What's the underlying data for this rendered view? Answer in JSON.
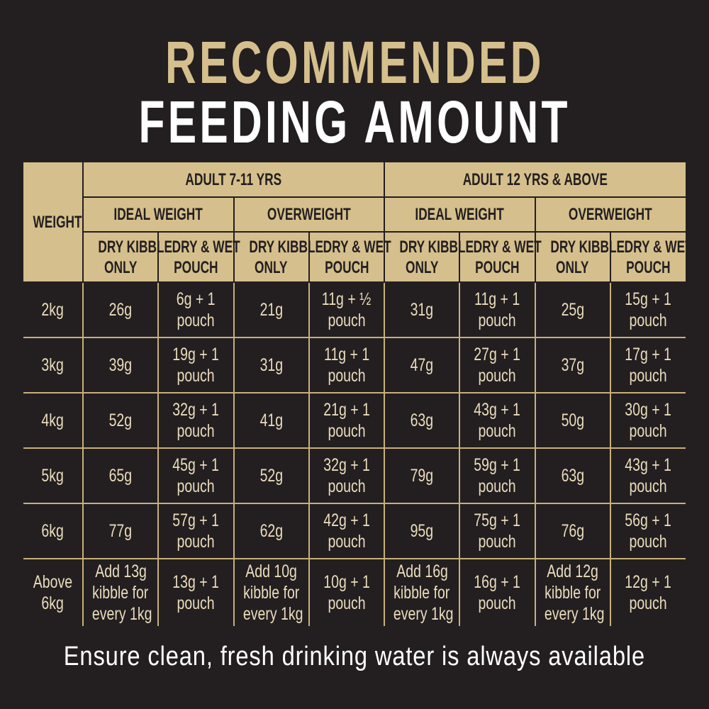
{
  "title": {
    "line1": "RECOMMENDED",
    "line2": "FEEDING AMOUNT"
  },
  "colors": {
    "background": "#231f20",
    "gold": "#d5bf8c",
    "text": "#eadcbc"
  },
  "table": {
    "weight_header": "WEIGHT",
    "age_groups": [
      "ADULT 7-11 YRS",
      "ADULT 12 YRS & ABOVE"
    ],
    "conditions": [
      "IDEAL WEIGHT",
      "OVERWEIGHT",
      "IDEAL WEIGHT",
      "OVERWEIGHT"
    ],
    "feed_types": [
      [
        "DRY KIBBLE",
        "ONLY"
      ],
      [
        "DRY & WET",
        "POUCH"
      ],
      [
        "DRY KIBBLE",
        "ONLY"
      ],
      [
        "DRY & WET",
        "POUCH"
      ],
      [
        "DRY KIBBLE",
        "ONLY"
      ],
      [
        "DRY & WET",
        "POUCH"
      ],
      [
        "DRY KIBBLE",
        "ONLY"
      ],
      [
        "DRY & WET",
        "POUCH"
      ]
    ],
    "rows": [
      {
        "weight": [
          "2kg"
        ],
        "values": [
          [
            "26g"
          ],
          [
            "6g + 1",
            "pouch"
          ],
          [
            "21g"
          ],
          [
            "11g + ½",
            "pouch"
          ],
          [
            "31g"
          ],
          [
            "11g + 1",
            "pouch"
          ],
          [
            "25g"
          ],
          [
            "15g + 1",
            "pouch"
          ]
        ]
      },
      {
        "weight": [
          "3kg"
        ],
        "values": [
          [
            "39g"
          ],
          [
            "19g + 1",
            "pouch"
          ],
          [
            "31g"
          ],
          [
            "11g + 1",
            "pouch"
          ],
          [
            "47g"
          ],
          [
            "27g + 1",
            "pouch"
          ],
          [
            "37g"
          ],
          [
            "17g + 1",
            "pouch"
          ]
        ]
      },
      {
        "weight": [
          "4kg"
        ],
        "values": [
          [
            "52g"
          ],
          [
            "32g + 1",
            "pouch"
          ],
          [
            "41g"
          ],
          [
            "21g + 1",
            "pouch"
          ],
          [
            "63g"
          ],
          [
            "43g + 1",
            "pouch"
          ],
          [
            "50g"
          ],
          [
            "30g + 1",
            "pouch"
          ]
        ]
      },
      {
        "weight": [
          "5kg"
        ],
        "values": [
          [
            "65g"
          ],
          [
            "45g + 1",
            "pouch"
          ],
          [
            "52g"
          ],
          [
            "32g + 1",
            "pouch"
          ],
          [
            "79g"
          ],
          [
            "59g + 1",
            "pouch"
          ],
          [
            "63g"
          ],
          [
            "43g + 1",
            "pouch"
          ]
        ]
      },
      {
        "weight": [
          "6kg"
        ],
        "values": [
          [
            "77g"
          ],
          [
            "57g + 1",
            "pouch"
          ],
          [
            "62g"
          ],
          [
            "42g + 1",
            "pouch"
          ],
          [
            "95g"
          ],
          [
            "75g + 1",
            "pouch"
          ],
          [
            "76g"
          ],
          [
            "56g + 1",
            "pouch"
          ]
        ]
      },
      {
        "weight": [
          "Above",
          "6kg"
        ],
        "values": [
          [
            "Add 13g",
            "kibble for",
            "every 1kg"
          ],
          [
            "13g + 1",
            "pouch"
          ],
          [
            "Add 10g",
            "kibble for",
            "every 1kg"
          ],
          [
            "10g + 1",
            "pouch"
          ],
          [
            "Add 16g",
            "kibble for",
            "every 1kg"
          ],
          [
            "16g + 1",
            "pouch"
          ],
          [
            "Add 12g",
            "kibble for",
            "every 1kg"
          ],
          [
            "12g + 1",
            "pouch"
          ]
        ]
      }
    ]
  },
  "footer": "Ensure clean, fresh drinking water is always available"
}
